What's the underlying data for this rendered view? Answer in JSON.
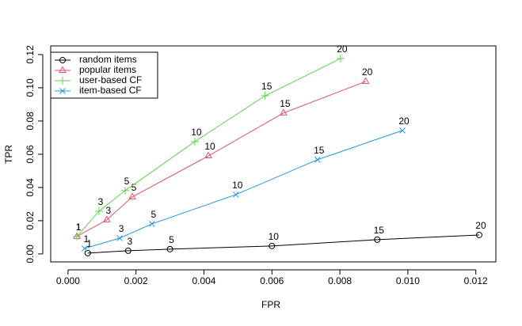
{
  "chart_data": {
    "type": "line",
    "x_label": "FPR",
    "y_label": "TPR",
    "point_labels": [
      "1",
      "3",
      "5",
      "10",
      "15",
      "20"
    ],
    "xlim": [
      -0.00051,
      0.01259
    ],
    "ylim": [
      -0.0048,
      0.1252
    ],
    "xticks": [
      {
        "value": 0,
        "label": "0.000"
      },
      {
        "value": 0.002,
        "label": "0.002"
      },
      {
        "value": 0.004,
        "label": "0.004"
      },
      {
        "value": 0.006,
        "label": "0.006"
      },
      {
        "value": 0.008,
        "label": "0.008"
      },
      {
        "value": 0.01,
        "label": "0.010"
      },
      {
        "value": 0.012,
        "label": "0.012"
      }
    ],
    "yticks": [
      {
        "value": 0,
        "label": "0.00"
      },
      {
        "value": 0.02,
        "label": "0.02"
      },
      {
        "value": 0.04,
        "label": "0.04"
      },
      {
        "value": 0.06,
        "label": "0.06"
      },
      {
        "value": 0.08,
        "label": "0.08"
      },
      {
        "value": 0.1,
        "label": "0.10"
      },
      {
        "value": 0.12,
        "label": "0.12"
      }
    ],
    "legend": "top-left",
    "series": [
      {
        "name": "random items",
        "color": "#000000",
        "marker": "circle",
        "x": [
          0.00058,
          0.00177,
          0.003,
          0.006,
          0.0091,
          0.0121
        ],
        "values": [
          0.0005,
          0.0019,
          0.0029,
          0.0048,
          0.0086,
          0.0114
        ]
      },
      {
        "name": "popular items",
        "color": "#df536b",
        "marker": "triangle",
        "x": [
          0.00026,
          0.00114,
          0.00189,
          0.00413,
          0.00634,
          0.00876
        ],
        "values": [
          0.0105,
          0.0205,
          0.0343,
          0.059,
          0.0848,
          0.1038
        ]
      },
      {
        "name": "user-based CF",
        "color": "#61d04f",
        "marker": "plus",
        "x": [
          0.00026,
          0.00091,
          0.00168,
          0.00373,
          0.0058,
          0.00802
        ],
        "values": [
          0.0105,
          0.0257,
          0.0381,
          0.0676,
          0.0952,
          0.1176
        ]
      },
      {
        "name": "item-based CF",
        "color": "#2297e6",
        "marker": "cross",
        "x": [
          0.00049,
          0.00152,
          0.00247,
          0.00494,
          0.00734,
          0.00984
        ],
        "values": [
          0.0033,
          0.0095,
          0.0181,
          0.0357,
          0.0567,
          0.0743
        ]
      }
    ]
  }
}
